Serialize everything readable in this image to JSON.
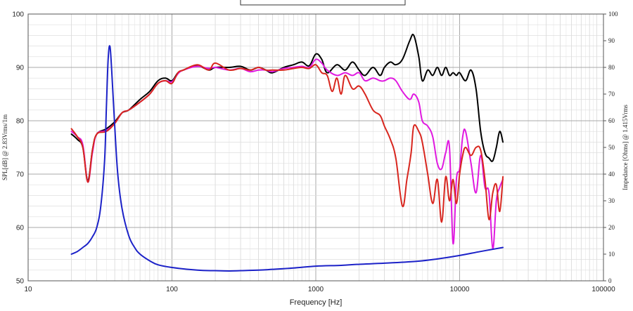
{
  "chart_data": {
    "type": "line",
    "title": "",
    "xlabel": "Frequency [Hz]",
    "ylabel": "SPL[dB] @ 2.83Vrms/1m",
    "y2label": "Impedance [Ohms] @ 1.415Vrms",
    "xscale": "log",
    "xlim": [
      10,
      100000
    ],
    "ylim": [
      50,
      100
    ],
    "y2lim": [
      0,
      100
    ],
    "grid": true,
    "legend": "none",
    "x_ticks": [
      "10",
      "100",
      "1000",
      "10000",
      "100000"
    ],
    "y_ticks": [
      "50",
      "60",
      "70",
      "80",
      "90",
      "100"
    ],
    "y2_ticks": [
      "0",
      "10",
      "20",
      "30",
      "40",
      "50",
      "60",
      "70",
      "80",
      "90",
      "100"
    ],
    "series": [
      {
        "color": "#000000",
        "axis": "left",
        "x": [
          20,
          22,
          24,
          26,
          28,
          30,
          35,
          40,
          45,
          50,
          60,
          70,
          80,
          90,
          100,
          110,
          120,
          150,
          180,
          200,
          250,
          300,
          350,
          400,
          450,
          500,
          600,
          700,
          800,
          900,
          1000,
          1100,
          1200,
          1400,
          1600,
          1800,
          2000,
          2200,
          2500,
          2800,
          3000,
          3300,
          3600,
          4000,
          4500,
          4800,
          5200,
          5500,
          6000,
          6500,
          7000,
          7500,
          8000,
          8500,
          9000,
          9500,
          10000,
          11000,
          12000,
          13000,
          14000,
          15000,
          16000,
          17000,
          18000,
          19000,
          20000
        ],
        "y": [
          77.5,
          76.5,
          75,
          68.8,
          74.5,
          77.5,
          78.5,
          79.8,
          81.5,
          82,
          84,
          85.5,
          87.5,
          88,
          87.5,
          89,
          89.5,
          90.3,
          89.5,
          90,
          90,
          90.2,
          89.5,
          90,
          89.5,
          89,
          90,
          90.5,
          91,
          90.3,
          92.5,
          91.5,
          89,
          90.5,
          89.5,
          91,
          89.5,
          88.5,
          90,
          88.5,
          90,
          91,
          90.5,
          91.5,
          95,
          96,
          92,
          87.5,
          89.5,
          88.5,
          90,
          88.5,
          90,
          88.5,
          89,
          88.5,
          89,
          87.5,
          89.5,
          86,
          78,
          74,
          73,
          72.5,
          75,
          78,
          76
        ]
      },
      {
        "color": "#e019e0",
        "axis": "left",
        "x": [
          20,
          22,
          24,
          26,
          28,
          30,
          35,
          40,
          45,
          50,
          60,
          70,
          80,
          90,
          100,
          110,
          120,
          150,
          180,
          200,
          250,
          300,
          350,
          400,
          450,
          500,
          600,
          700,
          800,
          900,
          1000,
          1100,
          1200,
          1400,
          1600,
          1800,
          2000,
          2200,
          2500,
          2800,
          3000,
          3300,
          3600,
          4000,
          4500,
          4800,
          5200,
          5500,
          6000,
          6500,
          7000,
          7500,
          8000,
          8500,
          9000,
          9500,
          10000,
          10500,
          11000,
          12000,
          13000,
          14000,
          15000,
          16000,
          17000,
          18000,
          19000,
          20000
        ],
        "y": [
          78,
          77,
          75.5,
          68.5,
          74,
          77.5,
          78.2,
          79.5,
          81.5,
          82,
          83.5,
          85,
          87,
          87.5,
          87.3,
          88.8,
          89.5,
          90.2,
          89.8,
          90,
          89.5,
          89.8,
          89.2,
          89.5,
          89.5,
          89.2,
          89.8,
          90,
          90.2,
          90,
          91.5,
          90.8,
          89.5,
          88.5,
          89,
          88.5,
          89,
          87.5,
          88,
          87.5,
          87.5,
          88,
          87.5,
          85.5,
          84,
          85,
          83.5,
          80,
          79,
          77,
          72,
          71,
          74,
          75,
          57,
          69,
          71,
          77,
          78,
          72,
          66.5,
          73.5,
          67.5,
          66.5,
          56,
          65,
          67.5,
          69
        ]
      },
      {
        "color": "#d8261e",
        "axis": "left",
        "x": [
          20,
          22,
          24,
          26,
          28,
          30,
          35,
          40,
          45,
          50,
          60,
          70,
          80,
          90,
          100,
          110,
          120,
          150,
          180,
          200,
          250,
          300,
          350,
          400,
          450,
          500,
          600,
          700,
          800,
          900,
          1000,
          1100,
          1200,
          1300,
          1400,
          1500,
          1600,
          1800,
          2000,
          2200,
          2500,
          2800,
          3000,
          3300,
          3600,
          4000,
          4300,
          4600,
          4800,
          5200,
          5500,
          6000,
          6500,
          7000,
          7500,
          8000,
          8500,
          9000,
          9500,
          10000,
          10500,
          11000,
          12000,
          13000,
          14000,
          15000,
          16000,
          17000,
          18000,
          19000,
          20000
        ],
        "y": [
          78.5,
          77,
          75,
          68.5,
          74.5,
          77.5,
          78,
          79.5,
          81.5,
          82,
          83.5,
          85,
          87,
          87.5,
          87,
          89,
          89.5,
          90.5,
          89.5,
          90.8,
          89.5,
          89.8,
          89.5,
          90,
          89.5,
          89.5,
          89.5,
          89.8,
          90,
          89.8,
          90.5,
          89,
          88.5,
          85.5,
          88,
          85,
          88.5,
          86,
          86.5,
          85,
          82,
          81,
          79,
          76.5,
          73,
          64,
          69,
          74,
          79,
          78,
          76,
          70,
          64.5,
          69,
          61,
          69.5,
          65,
          69,
          64.5,
          70,
          73.5,
          75,
          73.5,
          75,
          74.5,
          69,
          61.5,
          66.5,
          68,
          63,
          69.5
        ]
      },
      {
        "color": "#1c22c8",
        "axis": "right",
        "x": [
          20,
          22,
          24,
          26,
          28,
          30,
          32,
          34,
          35,
          36,
          37,
          38,
          40,
          42,
          45,
          50,
          55,
          60,
          70,
          80,
          100,
          150,
          200,
          250,
          300,
          400,
          500,
          700,
          1000,
          1500,
          2000,
          3000,
          5000,
          7000,
          10000,
          14000,
          20000
        ],
        "y": [
          10,
          11,
          12.5,
          14,
          16.5,
          20,
          28,
          45,
          65,
          83,
          88,
          80,
          58,
          40,
          27,
          17,
          12.5,
          10,
          7.5,
          6,
          5,
          4,
          3.8,
          3.7,
          3.8,
          4,
          4.3,
          4.8,
          5.5,
          5.8,
          6.2,
          6.6,
          7.3,
          8.2,
          9.5,
          11,
          12.5
        ]
      }
    ]
  }
}
